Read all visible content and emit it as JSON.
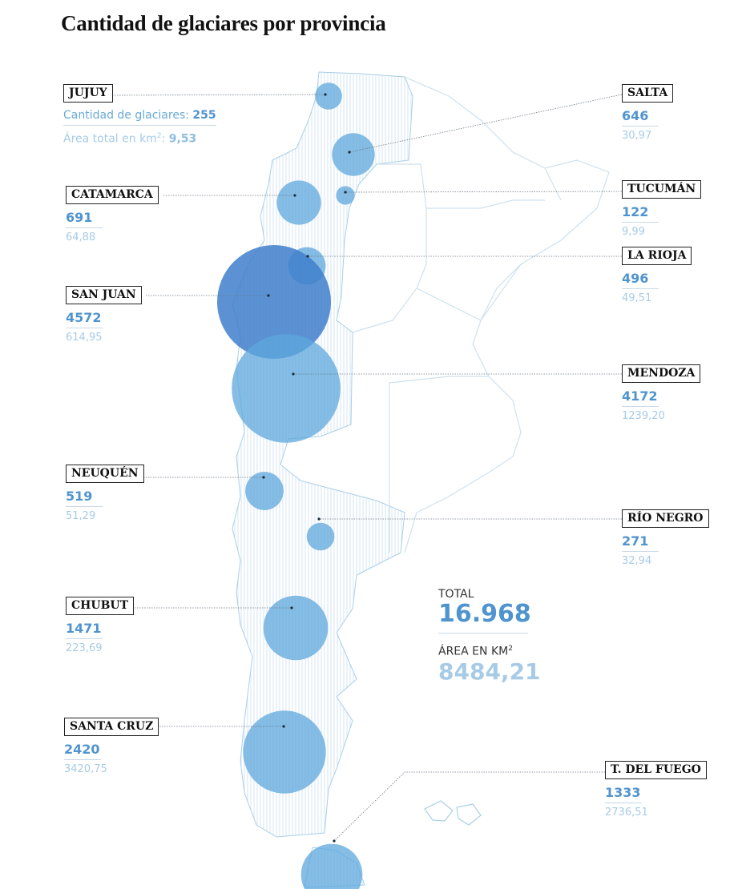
{
  "title": "Cantidad de glaciares por provincia",
  "legend": {
    "count_label": "Cantidad de glaciares:",
    "area_label": "Área total en km",
    "area_sup": "2",
    "area_suffix": ":"
  },
  "provinces": [
    {
      "name": "JUJUY",
      "count": 255,
      "area": "9,53"
    },
    {
      "name": "SALTA",
      "count": 646,
      "area": "30,97"
    },
    {
      "name": "CATAMARCA",
      "count": 691,
      "area": "64,88"
    },
    {
      "name": "TUCUMÁN",
      "count": 122,
      "area": "9,99"
    },
    {
      "name": "LA RIOJA",
      "count": 496,
      "area": "49,51"
    },
    {
      "name": "SAN JUAN",
      "count": 4572,
      "area": "614,95"
    },
    {
      "name": "MENDOZA",
      "count": 4172,
      "area": "1239,20"
    },
    {
      "name": "NEUQUÉN",
      "count": 519,
      "area": "51,29"
    },
    {
      "name": "RÍO NEGRO",
      "count": 271,
      "area": "32,94"
    },
    {
      "name": "CHUBUT",
      "count": 1471,
      "area": "223,69"
    },
    {
      "name": "SANTA CRUZ",
      "count": 2420,
      "area": "3420,75"
    },
    {
      "name": "T. DEL FUEGO",
      "count": 1333,
      "area": "2736,51"
    }
  ],
  "total": {
    "label": "TOTAL",
    "value": "16.968",
    "area_label": "ÁREA EN KM",
    "area_sup": "2",
    "area_value": "8484,21"
  },
  "colors": {
    "bubble": "#5ea7dc",
    "bubble_dark": "#3f7fcb",
    "border": "#a9cfe8",
    "count": "#4f94cf",
    "area": "#a7cbe6"
  }
}
